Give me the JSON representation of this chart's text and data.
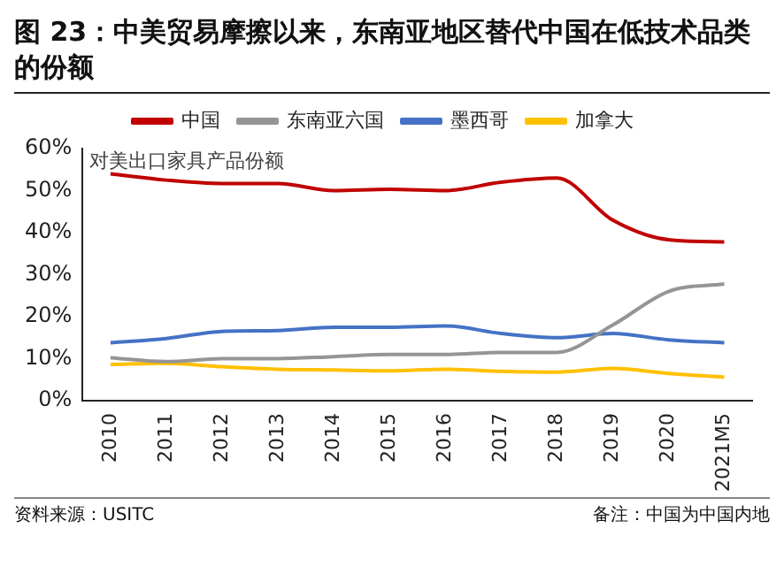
{
  "chart_data": {
    "type": "line",
    "title": "图 23：中美贸易摩擦以来，东南亚地区替代中国在低技术品类的份额",
    "ylabel": "对美出口家具产品份额",
    "categories": [
      "2010",
      "2011",
      "2012",
      "2013",
      "2014",
      "2015",
      "2016",
      "2017",
      "2018",
      "2019",
      "2020",
      "2021M5"
    ],
    "series": [
      {
        "name": "中国",
        "color": "#c00000",
        "values": [
          54,
          52.5,
          51.7,
          51.7,
          50,
          50.3,
          50,
          52,
          53,
          43,
          38.3,
          37.8
        ]
      },
      {
        "name": "东南亚六国",
        "color": "#959595",
        "values": [
          10.2,
          9.3,
          10,
          10,
          10.5,
          11,
          11,
          11.5,
          11.5,
          18,
          26,
          27.8
        ]
      },
      {
        "name": "墨西哥",
        "color": "#4472c4",
        "values": [
          13.8,
          14.8,
          16.5,
          16.7,
          17.5,
          17.5,
          17.8,
          16,
          15,
          16,
          14.5,
          13.8
        ]
      },
      {
        "name": "加拿大",
        "color": "#ffc000",
        "values": [
          8.6,
          8.9,
          8.1,
          7.5,
          7.3,
          7.1,
          7.5,
          7,
          6.8,
          7.7,
          6.5,
          5.6
        ]
      }
    ],
    "ylim": [
      0,
      60
    ],
    "yticks": [
      {
        "value": 0,
        "label": "0%"
      },
      {
        "value": 10,
        "label": "10%"
      },
      {
        "value": 20,
        "label": "20%"
      },
      {
        "value": 30,
        "label": "30%"
      },
      {
        "value": 40,
        "label": "40%"
      },
      {
        "value": 50,
        "label": "50%"
      },
      {
        "value": 60,
        "label": "60%"
      }
    ],
    "legend": "top",
    "grid": false,
    "marker": "none",
    "line_style": "solid",
    "annotations": [
      "资料来源：USITC",
      "备注：中国为中国内地"
    ]
  }
}
